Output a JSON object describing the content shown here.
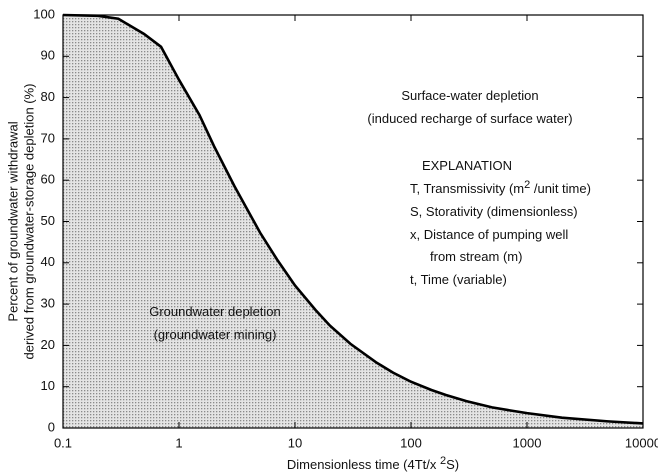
{
  "chart_data": {
    "type": "area",
    "xlabel": [
      "Dimensionless time (4Tt/x ",
      "2",
      "S)"
    ],
    "ylabel": [
      "Percent of groundwater withdrawal",
      "derived from groundwater-storage depletion (%)"
    ],
    "x": [
      0.1,
      0.2,
      0.3,
      0.5,
      0.7,
      1,
      1.5,
      2,
      3,
      5,
      7,
      10,
      15,
      20,
      30,
      50,
      70,
      100,
      150,
      200,
      300,
      500,
      700,
      1000,
      2000,
      5000,
      10000
    ],
    "values": [
      100,
      99.8,
      99.1,
      95.4,
      92.3,
      84.3,
      75.8,
      68.3,
      58.6,
      47.3,
      40.8,
      34.5,
      28.6,
      24.8,
      20.4,
      15.9,
      13.4,
      11.2,
      9.2,
      8.0,
      6.5,
      5.0,
      4.3,
      3.6,
      2.5,
      1.6,
      1.1
    ],
    "fill_color": "#cfcfcf",
    "line_color": "#000000",
    "log_x": true,
    "xlim": [
      0.1,
      10000
    ],
    "ylim": [
      0,
      100
    ],
    "xticks": [
      0.1,
      1,
      10,
      100,
      1000,
      10000
    ],
    "yticks": [
      0,
      10,
      20,
      30,
      40,
      50,
      60,
      70,
      80,
      90,
      100
    ],
    "annotations": [
      [
        "Surface-water depletion"
      ],
      [
        "(induced recharge of surface water)"
      ],
      [
        "EXPLANATION"
      ],
      [
        "T,  Transmissivity (m",
        "2",
        " /unit time)"
      ],
      [
        "S,  Storativity (dimensionless)"
      ],
      [
        "x,  Distance of pumping well"
      ],
      [
        "from stream (m)"
      ],
      [
        "t,  Time (variable)"
      ],
      [
        "Groundwater depletion"
      ],
      [
        "(groundwater mining)"
      ]
    ]
  }
}
